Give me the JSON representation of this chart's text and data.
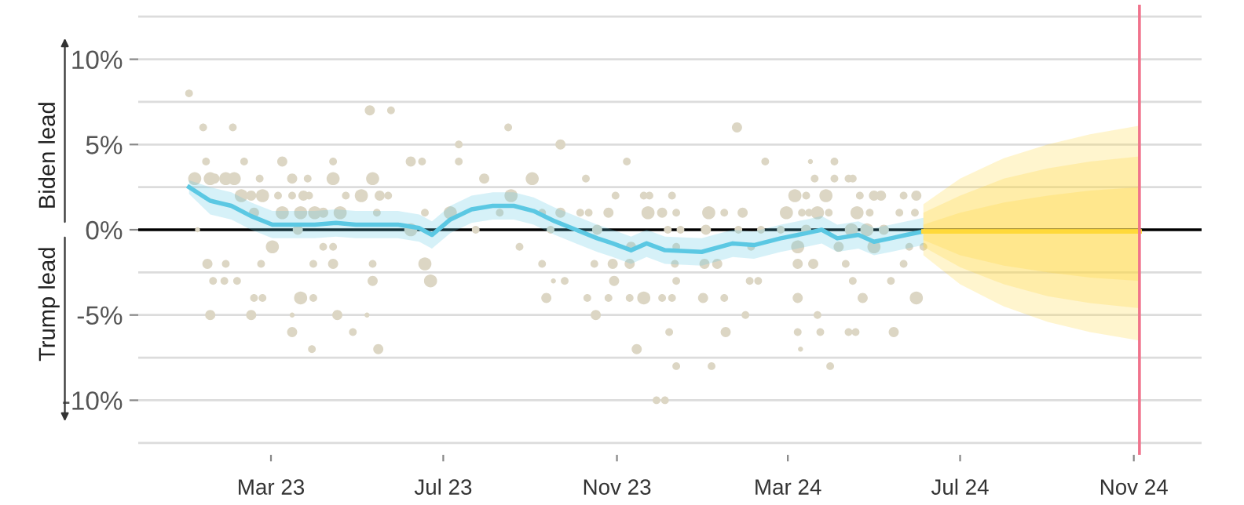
{
  "chart_data": {
    "type": "scatter",
    "xlim": [
      "2022-11-27",
      "2024-12-19"
    ],
    "ylim": [
      -13.2,
      13.2
    ],
    "xticks": [
      {
        "value": "2023-03-01",
        "label": "Mar 23"
      },
      {
        "value": "2023-07-01",
        "label": "Jul 23"
      },
      {
        "value": "2023-11-01",
        "label": "Nov 23"
      },
      {
        "value": "2024-03-01",
        "label": "Mar 24"
      },
      {
        "value": "2024-07-01",
        "label": "Jul 24"
      },
      {
        "value": "2024-11-01",
        "label": "Nov 24"
      }
    ],
    "yticks": [
      {
        "value": 12.5,
        "label": null
      },
      {
        "value": 10,
        "label": "10%"
      },
      {
        "value": 7.5,
        "label": null
      },
      {
        "value": 5,
        "label": "5%"
      },
      {
        "value": 2.5,
        "label": null
      },
      {
        "value": 0,
        "label": "0%"
      },
      {
        "value": -2.5,
        "label": null
      },
      {
        "value": -5,
        "label": "-5%"
      },
      {
        "value": -7.5,
        "label": null
      },
      {
        "value": -10,
        "label": "-10%"
      },
      {
        "value": -12.5,
        "label": null
      }
    ],
    "grid": "y",
    "annotations": [
      "Biden lead",
      "Trump lead"
    ],
    "ref_lines": [
      {
        "axis": "y",
        "value": 0,
        "color": "#000000"
      },
      {
        "axis": "x",
        "value": "2024-11-05",
        "color": "#f0738c"
      }
    ],
    "series": [
      {
        "marker": "circle",
        "color": "#dcd6c4",
        "x": [
          "2023-01-02",
          "2023-05-10",
          "2023-05-25",
          "2023-01-12",
          "2023-02-02",
          "2023-08-16",
          "2023-07-12",
          "2023-09-22",
          "2023-01-14",
          "2023-02-10",
          "2023-03-09",
          "2023-04-14",
          "2023-06-08",
          "2023-06-16",
          "2023-07-12",
          "2023-01-06",
          "2023-01-17",
          "2023-01-28",
          "2023-02-03",
          "2023-01-20",
          "2023-02-21",
          "2023-03-16",
          "2023-03-27",
          "2023-04-14",
          "2023-05-12",
          "2023-07-30",
          "2023-09-02",
          "2023-10-10",
          "2023-02-08",
          "2023-02-15",
          "2023-02-23",
          "2023-03-06",
          "2023-03-16",
          "2023-03-24",
          "2023-03-28",
          "2023-04-23",
          "2023-05-04",
          "2023-05-17",
          "2023-05-23",
          "2023-08-18",
          "2023-02-17",
          "2023-03-09",
          "2023-03-22",
          "2023-04-01",
          "2023-04-07",
          "2023-04-19",
          "2023-05-15",
          "2023-06-18",
          "2023-07-06",
          "2023-08-10",
          "2023-09-09",
          "2023-09-22",
          "2023-10-06",
          "2023-10-12",
          "2023-10-26",
          "2023-01-08",
          "2023-03-20",
          "2023-06-08",
          "2023-07-24",
          "2023-10-18",
          "2023-09-15",
          "2023-03-02",
          "2023-04-07",
          "2023-04-14",
          "2023-08-24",
          "2023-01-15",
          "2023-01-28",
          "2023-02-22",
          "2023-03-31",
          "2023-04-14",
          "2023-05-12",
          "2023-06-18",
          "2023-09-09",
          "2023-10-16",
          "2023-10-29",
          "2023-01-19",
          "2023-01-27",
          "2023-02-05",
          "2023-05-12",
          "2023-06-22",
          "2023-09-17",
          "2023-09-25",
          "2023-10-30",
          "2023-02-17",
          "2023-02-23",
          "2023-03-22",
          "2023-03-31",
          "2023-09-12",
          "2023-10-11",
          "2023-10-26",
          "2023-01-17",
          "2023-02-15",
          "2023-03-16",
          "2023-04-17",
          "2023-05-08",
          "2023-10-17",
          "2023-03-16",
          "2023-04-28",
          "2023-03-30",
          "2023-05-16",
          "2024-01-25",
          "2023-11-08",
          "2024-02-14",
          "2024-03-17",
          "2024-04-03",
          "2024-03-20",
          "2024-04-03",
          "2024-04-13",
          "2024-04-16",
          "2023-10-31",
          "2023-11-20",
          "2023-11-24",
          "2023-12-10",
          "2024-03-06",
          "2024-03-14",
          "2024-03-28",
          "2024-04-21",
          "2024-05-01",
          "2024-05-06",
          "2024-05-22",
          "2024-05-31",
          "2023-11-23",
          "2023-12-03",
          "2023-12-13",
          "2024-01-05",
          "2024-01-16",
          "2024-01-29",
          "2024-02-29",
          "2024-03-11",
          "2024-03-16",
          "2024-03-22",
          "2024-03-30",
          "2024-04-19",
          "2024-04-28",
          "2024-05-19",
          "2024-05-30",
          "2023-12-07",
          "2023-12-16",
          "2024-01-03",
          "2024-01-26",
          "2024-02-11",
          "2024-02-25",
          "2024-03-14",
          "2024-04-15",
          "2024-04-26",
          "2024-05-08",
          "2023-11-11",
          "2023-12-13",
          "2024-02-04",
          "2024-03-08",
          "2024-04-06",
          "2024-05-01",
          "2024-05-26",
          "2024-06-05",
          "2023-11-10",
          "2023-12-12",
          "2024-01-02",
          "2024-01-11",
          "2024-03-08",
          "2024-03-19",
          "2024-04-11",
          "2024-05-22",
          "2023-12-13",
          "2024-02-03",
          "2024-02-09",
          "2024-04-16",
          "2024-05-13",
          "2023-11-10",
          "2023-11-20",
          "2023-12-03",
          "2023-12-10",
          "2024-01-01",
          "2024-01-16",
          "2024-03-08",
          "2024-04-23",
          "2024-05-31",
          "2024-01-31",
          "2024-03-22",
          "2023-12-08",
          "2024-01-17",
          "2024-03-08",
          "2024-03-24",
          "2024-04-13",
          "2024-04-18",
          "2024-05-15",
          "2023-11-15",
          "2024-03-10",
          "2023-12-13",
          "2024-01-07",
          "2024-03-31",
          "2023-11-29",
          "2023-12-05"
        ],
        "values": [
          8,
          7,
          7,
          6,
          6,
          6,
          5,
          5,
          4,
          4,
          4,
          4,
          4,
          4,
          4,
          3,
          3,
          3,
          3,
          3,
          3,
          3,
          3,
          3,
          3,
          3,
          3,
          3,
          2,
          2,
          2,
          2,
          2,
          2,
          2,
          2,
          2,
          2,
          2,
          2,
          1,
          1,
          1,
          1,
          1,
          1,
          1,
          1,
          1,
          1,
          1,
          1,
          1,
          1,
          1,
          0,
          0,
          0,
          0,
          0,
          0,
          -1,
          -1,
          -1,
          -1,
          -2,
          -2,
          -2,
          -2,
          -2,
          -2,
          -2,
          -2,
          -2,
          -2,
          -3,
          -3,
          -3,
          -3,
          -3,
          -3,
          -3,
          -3,
          -4,
          -4,
          -4,
          -4,
          -4,
          -4,
          -4,
          -5,
          -5,
          -5,
          -5,
          -5,
          -5,
          -6,
          -6,
          -7,
          -7,
          6,
          4,
          4,
          4,
          4,
          3,
          3,
          3,
          3,
          2,
          2,
          2,
          2,
          2,
          2,
          2,
          2,
          2,
          2,
          2,
          2,
          1,
          1,
          1,
          1,
          1,
          1,
          1,
          1,
          1,
          1,
          1,
          1,
          1,
          1,
          1,
          0,
          0,
          0,
          0,
          0,
          0,
          0,
          0,
          0,
          0,
          -1,
          -1,
          -1,
          -1,
          -1,
          -1,
          -1,
          -1,
          -2,
          -2,
          -2,
          -2,
          -2,
          -2,
          -2,
          -2,
          -3,
          -3,
          -3,
          -3,
          -3,
          -4,
          -4,
          -4,
          -4,
          -4,
          -4,
          -4,
          -4,
          -4,
          -5,
          -5,
          -6,
          -6,
          -6,
          -6,
          -6,
          -6,
          -6,
          -7,
          -7,
          -8,
          -8,
          -8,
          -10,
          -10
        ],
        "sizes": [
          0.35,
          0.6,
          0.35,
          0.35,
          0.35,
          0.35,
          0.35,
          0.6,
          0.35,
          0.35,
          0.6,
          0.35,
          0.6,
          0.35,
          0.35,
          1,
          1,
          1,
          1,
          0.6,
          0.35,
          0.6,
          0.35,
          1,
          1,
          0.6,
          1,
          0.35,
          1,
          0.6,
          1,
          0.35,
          0.35,
          0.6,
          0.35,
          0.35,
          1,
          0.6,
          0.35,
          1,
          0.6,
          1,
          1,
          1,
          0.6,
          1,
          0.35,
          0.35,
          1,
          0.35,
          0.35,
          0.6,
          0.35,
          0.35,
          0.6,
          0.15,
          0.6,
          1,
          0.35,
          0.6,
          0.35,
          1,
          0.35,
          0.35,
          0.35,
          0.6,
          0.35,
          0.35,
          0.35,
          0.6,
          0.35,
          1,
          0.35,
          0.35,
          0.6,
          0.35,
          0.35,
          0.35,
          0.6,
          1,
          0.15,
          0.35,
          0.6,
          0.35,
          0.35,
          1,
          0.35,
          0.6,
          0.35,
          0.35,
          0.6,
          0.6,
          0.15,
          0.6,
          0.15,
          0.6,
          0.6,
          0.35,
          0.35,
          0.6,
          0.6,
          0.35,
          0.35,
          0.15,
          0.35,
          0.35,
          0.35,
          0.35,
          0.35,
          0.35,
          0.35,
          0.35,
          0.35,
          1,
          0.35,
          1,
          0.35,
          0.6,
          0.6,
          0.35,
          0.6,
          1,
          0.6,
          0.35,
          1,
          0.35,
          0.6,
          1,
          0.35,
          0.35,
          1,
          0.35,
          1,
          0.35,
          0.35,
          0.35,
          0.35,
          0.35,
          0.6,
          0.35,
          0.35,
          0.35,
          0.6,
          1,
          1,
          0.6,
          0.6,
          0.35,
          0.35,
          1,
          0.6,
          1,
          0.35,
          0.35,
          0.6,
          0.35,
          0.6,
          0.6,
          0.6,
          0.6,
          0.35,
          0.35,
          0.35,
          0.35,
          0.35,
          0.35,
          0.35,
          0.35,
          1,
          0.35,
          0.35,
          0.6,
          0.35,
          0.6,
          0.6,
          1,
          0.35,
          0.35,
          0.35,
          0.6,
          0.35,
          0.35,
          0.35,
          0.35,
          0.6,
          0.6,
          0.15,
          0.35,
          0.35,
          0.35,
          0.35,
          0.35
        ]
      },
      {
        "type": "line",
        "color": "#5bc8e3",
        "x": [
          "2023-01-02",
          "2023-01-17",
          "2023-02-01",
          "2023-02-15",
          "2023-03-02",
          "2023-03-17",
          "2023-04-01",
          "2023-04-16",
          "2023-04-30",
          "2023-05-15",
          "2023-05-30",
          "2023-06-14",
          "2023-06-23",
          "2023-07-06",
          "2023-07-21",
          "2023-08-05",
          "2023-08-20",
          "2023-09-03",
          "2023-09-18",
          "2023-10-03",
          "2023-10-18",
          "2023-10-29",
          "2023-11-11",
          "2023-11-22",
          "2023-12-05",
          "2023-12-31",
          "2024-01-22",
          "2024-02-06",
          "2024-02-25",
          "2024-03-14",
          "2024-03-25",
          "2024-04-05",
          "2024-04-20",
          "2024-05-01",
          "2024-05-13",
          "2024-05-24",
          "2024-06-05"
        ],
        "values": [
          2.5,
          1.7,
          1.4,
          0.8,
          0.3,
          0.3,
          0.3,
          0.4,
          0.3,
          0.3,
          0.3,
          0.1,
          -0.3,
          0.6,
          1.2,
          1.4,
          1.4,
          1.1,
          0.5,
          0,
          -0.5,
          -0.8,
          -1.2,
          -0.8,
          -1.2,
          -1.3,
          -0.8,
          -0.9,
          -0.5,
          -0.2,
          0,
          -0.5,
          -0.3,
          -0.7,
          -0.5,
          -0.3,
          -0.1
        ],
        "lower": [
          2.1,
          0.9,
          0.6,
          0,
          -0.5,
          -0.5,
          -0.5,
          -0.4,
          -0.5,
          -0.5,
          -0.5,
          -0.7,
          -1.1,
          -0.2,
          0.4,
          0.6,
          0.6,
          0.3,
          -0.3,
          -0.8,
          -1.3,
          -1.6,
          -2,
          -1.6,
          -2,
          -2.1,
          -1.6,
          -1.7,
          -1.3,
          -1,
          -0.8,
          -1.3,
          -1.1,
          -1.5,
          -1.3,
          -1.1,
          -0.9
        ],
        "upper": [
          2.9,
          2.5,
          2.2,
          1.6,
          1.1,
          1.1,
          1.1,
          1.2,
          1.1,
          1.1,
          1.1,
          0.9,
          0.5,
          1.4,
          2,
          2.2,
          2.2,
          1.9,
          1.3,
          0.8,
          0.3,
          0,
          -0.4,
          0,
          -0.4,
          -0.5,
          0,
          -0.1,
          0.3,
          0.6,
          0.8,
          0.3,
          0.5,
          0.1,
          0.3,
          0.5,
          0.7
        ]
      },
      {
        "type": "line",
        "color": "#ffd93a",
        "x": [
          "2024-06-05",
          "2024-07-01",
          "2024-08-01",
          "2024-09-01",
          "2024-10-01",
          "2024-11-05"
        ],
        "values": [
          -0.1,
          -0.1,
          -0.1,
          -0.1,
          -0.1,
          -0.1
        ],
        "lower": [
          -1.5,
          -3.2,
          -4.5,
          -5.4,
          -6,
          -6.5
        ],
        "upper": [
          1.5,
          3,
          4.2,
          5,
          5.6,
          6.1
        ]
      },
      {
        "type": "line",
        "color": "#ffd93a",
        "x": [
          "2024-06-05",
          "2024-07-01",
          "2024-08-01",
          "2024-09-01",
          "2024-10-01",
          "2024-11-05"
        ],
        "values": [
          -0.1,
          -0.1,
          -0.1,
          -0.1,
          -0.1,
          -0.1
        ],
        "lower": [
          -1,
          -2.2,
          -3.2,
          -3.9,
          -4.3,
          -4.6
        ],
        "upper": [
          1,
          2,
          3,
          3.6,
          4,
          4.3
        ]
      },
      {
        "type": "line",
        "color": "#ffd93a",
        "x": [
          "2024-06-05",
          "2024-07-01",
          "2024-08-01",
          "2024-09-01",
          "2024-10-01",
          "2024-11-05"
        ],
        "values": [
          -0.1,
          -0.1,
          -0.1,
          -0.1,
          -0.1,
          -0.1
        ],
        "lower": [
          -0.6,
          -1.5,
          -2.1,
          -2.5,
          -2.8,
          -3
        ],
        "upper": [
          0.3,
          1,
          1.6,
          2,
          2.3,
          2.5
        ]
      }
    ]
  }
}
